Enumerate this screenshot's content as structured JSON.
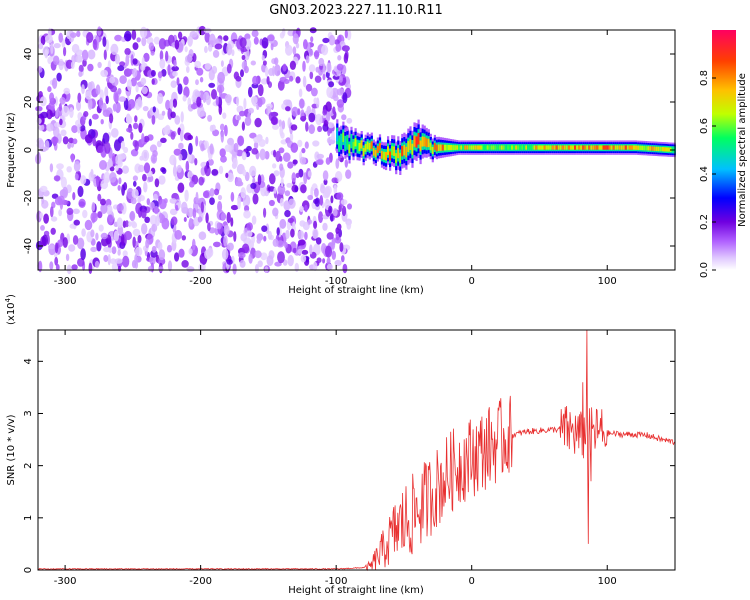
{
  "figure_title": "GN03.2023.227.11.10.R11",
  "colors": {
    "snr_line": "#e83030",
    "axis": "#000000",
    "colormap": [
      "#ffffff",
      "#e0c8ff",
      "#b060ff",
      "#7000e0",
      "#0000ff",
      "#00c0ff",
      "#00ff60",
      "#c0ff00",
      "#ffc000",
      "#ff4000",
      "#ff0060"
    ]
  },
  "chart_data": [
    {
      "type": "heatmap",
      "xlabel": "Height of straight line (km)",
      "ylabel": "Frequency (Hz)",
      "xlim": [
        -320,
        150
      ],
      "ylim": [
        -50,
        50
      ],
      "x_ticks": [
        -300,
        -200,
        -100,
        0,
        100
      ],
      "x_tick_labels": [
        "-300",
        "-200",
        "-100",
        "0",
        "100"
      ],
      "y_ticks": [
        -40,
        -20,
        0,
        20,
        40
      ],
      "y_tick_labels": [
        "-40",
        "-20",
        "0",
        "20",
        "40"
      ],
      "noise_region_x": [
        -320,
        -90
      ],
      "signal_band": [
        {
          "x": -100,
          "center": 5,
          "halfwidth": 7,
          "peak": 0.55
        },
        {
          "x": -90,
          "center": 2,
          "halfwidth": 6,
          "peak": 0.7
        },
        {
          "x": -70,
          "center": 0,
          "halfwidth": 5,
          "peak": 0.9
        },
        {
          "x": -55,
          "center": -3,
          "halfwidth": 7,
          "peak": 0.85
        },
        {
          "x": -40,
          "center": 3,
          "halfwidth": 8,
          "peak": 0.95
        },
        {
          "x": -30,
          "center": 1,
          "halfwidth": 5,
          "peak": 0.9
        },
        {
          "x": -10,
          "center": 1,
          "halfwidth": 3,
          "peak": 0.8
        },
        {
          "x": 20,
          "center": 1,
          "halfwidth": 3,
          "peak": 0.7
        },
        {
          "x": 60,
          "center": 1,
          "halfwidth": 3,
          "peak": 0.85
        },
        {
          "x": 90,
          "center": 1,
          "halfwidth": 3,
          "peak": 0.95
        },
        {
          "x": 120,
          "center": 1,
          "halfwidth": 3,
          "peak": 0.9
        },
        {
          "x": 150,
          "center": 0,
          "halfwidth": 3,
          "peak": 0.7
        }
      ],
      "colorbar": {
        "label": "Normalized spectral amplitude",
        "range": [
          0,
          1
        ],
        "ticks": [
          0.0,
          0.2,
          0.4,
          0.6,
          0.8
        ],
        "tick_labels": [
          "0.0",
          "0.2",
          "0.4",
          "0.6",
          "0.8"
        ]
      }
    },
    {
      "type": "line",
      "xlabel": "Height of straight line (km)",
      "ylabel": "SNR (10 * v/v)",
      "y_multiplier": "(x10",
      "y_multiplier_exp": "4",
      "y_multiplier_close": ")",
      "xlim": [
        -320,
        150
      ],
      "ylim": [
        0,
        4.6
      ],
      "x_ticks": [
        -300,
        -200,
        -100,
        0,
        100
      ],
      "x_tick_labels": [
        "-300",
        "-200",
        "-100",
        "0",
        "100"
      ],
      "y_ticks": [
        0,
        1,
        2,
        3,
        4
      ],
      "y_tick_labels": [
        "0",
        "1",
        "2",
        "3",
        "4"
      ],
      "series": [
        {
          "x": [
            -320,
            -200,
            -100,
            -75,
            -65,
            -55,
            -45,
            -35,
            -25,
            -15,
            -5,
            5,
            15,
            25,
            40,
            55,
            65,
            75,
            80,
            85,
            90,
            95,
            100,
            110,
            120,
            130,
            140,
            150
          ],
          "y": [
            0.02,
            0.02,
            0.02,
            0.05,
            0.4,
            0.8,
            1.0,
            1.3,
            1.6,
            1.9,
            2.1,
            2.25,
            2.4,
            2.55,
            2.65,
            2.68,
            2.7,
            2.65,
            2.55,
            2.6,
            2.65,
            2.65,
            2.62,
            2.6,
            2.6,
            2.58,
            2.5,
            2.45
          ],
          "spikes": [
            {
              "x": 85,
              "y": 4.6
            },
            {
              "x": 86,
              "y": 0.5
            },
            {
              "x": 82,
              "y": 3.6
            },
            {
              "x": 88,
              "y": 1.7
            }
          ]
        }
      ]
    }
  ]
}
